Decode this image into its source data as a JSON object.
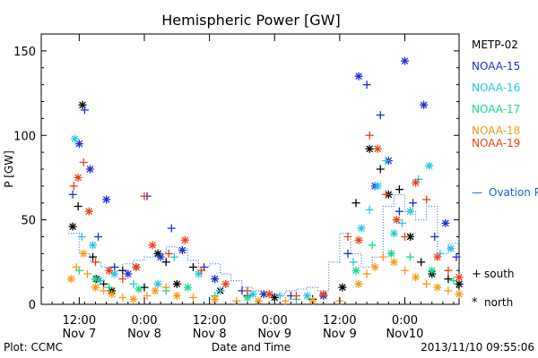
{
  "chart_data": {
    "type": "scatter",
    "title": "Hemispheric Power [GW]",
    "xlabel": "Date and Time",
    "ylabel": "P [GW]",
    "ylim": [
      0,
      160
    ],
    "xlim_hours": [
      0,
      77
    ],
    "xlim": [
      "2013-11-07 05:00",
      "2013-11-10 10:00"
    ],
    "yticks": [
      0,
      50,
      100,
      150
    ],
    "xticks": [
      {
        "t": "2013-11-07 12:00",
        "label1": "12:00",
        "label2": "Nov 7"
      },
      {
        "t": "2013-11-08 00:00",
        "label1": "0:00",
        "label2": "Nov 8"
      },
      {
        "t": "2013-11-08 12:00",
        "label1": "12:00",
        "label2": "Nov 8"
      },
      {
        "t": "2013-11-09 00:00",
        "label1": "0:00",
        "label2": "Nov 9"
      },
      {
        "t": "2013-11-09 12:00",
        "label1": "12:00",
        "label2": "Nov 9"
      },
      {
        "t": "2013-11-10 00:00",
        "label1": "0:00",
        "label2": "Nov10"
      }
    ],
    "footer_left": "Plot: CCMC",
    "footer_right": "2013/11/10 09:55:06",
    "legend_position": "right",
    "symbol_legend": [
      {
        "marker": "+",
        "label": "south"
      },
      {
        "marker": "*",
        "label": "north"
      }
    ],
    "series": [
      {
        "name": "METP-02",
        "color": "#000000",
        "marker": "mixed",
        "points": [
          [
            5.8,
            46
          ],
          [
            6.8,
            58
          ],
          [
            7.6,
            118
          ],
          [
            9.5,
            28
          ],
          [
            10.2,
            15
          ],
          [
            11.5,
            12
          ],
          [
            13.0,
            8
          ],
          [
            15.0,
            20
          ],
          [
            17.5,
            22
          ],
          [
            19.0,
            10
          ],
          [
            21.5,
            30
          ],
          [
            23.0,
            25
          ],
          [
            25.0,
            12
          ],
          [
            28.0,
            22
          ],
          [
            33.0,
            8
          ],
          [
            38.0,
            5
          ],
          [
            43.0,
            4
          ],
          [
            50.0,
            3
          ],
          [
            55.5,
            10
          ],
          [
            58.0,
            60
          ],
          [
            60.5,
            92
          ],
          [
            62.5,
            80
          ],
          [
            64.0,
            65
          ],
          [
            66.0,
            68
          ],
          [
            68.0,
            40
          ],
          [
            70.0,
            25
          ],
          [
            72.0,
            18
          ],
          [
            75.0,
            15
          ],
          [
            77.0,
            12
          ],
          [
            79.0,
            10
          ],
          [
            81.0,
            22
          ],
          [
            83.0,
            28
          ],
          [
            85.0,
            14
          ],
          [
            88.0,
            8
          ],
          [
            90.0,
            10
          ]
        ]
      },
      {
        "name": "NOAA-15",
        "color": "#1a2fd0",
        "marker": "mixed",
        "points": [
          [
            5.8,
            65
          ],
          [
            7.0,
            95
          ],
          [
            8.0,
            115
          ],
          [
            9.0,
            80
          ],
          [
            10.5,
            40
          ],
          [
            12.0,
            62
          ],
          [
            13.5,
            22
          ],
          [
            16.0,
            18
          ],
          [
            19.5,
            64
          ],
          [
            22.0,
            28
          ],
          [
            24.0,
            45
          ],
          [
            26.0,
            32
          ],
          [
            30.0,
            22
          ],
          [
            32.0,
            15
          ],
          [
            37.0,
            8
          ],
          [
            41.0,
            6
          ],
          [
            46.0,
            5
          ],
          [
            52.0,
            5
          ],
          [
            56.5,
            30
          ],
          [
            58.5,
            135
          ],
          [
            60.0,
            130
          ],
          [
            61.5,
            70
          ],
          [
            62.5,
            112
          ],
          [
            64.0,
            85
          ],
          [
            66.0,
            55
          ],
          [
            67.0,
            144
          ],
          [
            68.5,
            60
          ],
          [
            70.5,
            118
          ],
          [
            72.5,
            40
          ],
          [
            74.5,
            48
          ],
          [
            76.5,
            28
          ],
          [
            78.5,
            22
          ],
          [
            80.0,
            12
          ],
          [
            82.0,
            8
          ],
          [
            83.5,
            30
          ],
          [
            85.5,
            24
          ],
          [
            88.0,
            15
          ],
          [
            90.0,
            8
          ]
        ]
      },
      {
        "name": "NOAA-16",
        "color": "#22c8e0",
        "marker": "mixed",
        "points": [
          [
            6.2,
            98
          ],
          [
            7.5,
            40
          ],
          [
            9.5,
            35
          ],
          [
            11.0,
            14
          ],
          [
            13.5,
            18
          ],
          [
            17.0,
            12
          ],
          [
            21.5,
            12
          ],
          [
            24.5,
            28
          ],
          [
            29.0,
            18
          ],
          [
            33.0,
            8
          ],
          [
            39.0,
            6
          ],
          [
            44.0,
            5
          ],
          [
            49.0,
            5
          ],
          [
            57.5,
            25
          ],
          [
            59.0,
            45
          ],
          [
            60.5,
            56
          ],
          [
            62.0,
            70
          ],
          [
            63.5,
            85
          ],
          [
            65.0,
            42
          ],
          [
            66.5,
            48
          ],
          [
            68.0,
            55
          ],
          [
            69.5,
            74
          ],
          [
            71.5,
            82
          ],
          [
            73.5,
            30
          ],
          [
            75.5,
            33
          ],
          [
            77.5,
            20
          ],
          [
            79.5,
            18
          ],
          [
            82.5,
            10
          ],
          [
            85.0,
            6
          ],
          [
            88.5,
            8
          ]
        ]
      },
      {
        "name": "NOAA-17",
        "color": "#19d98c",
        "marker": "mixed",
        "points": [
          [
            7.0,
            20
          ],
          [
            10.0,
            15
          ],
          [
            12.5,
            10
          ],
          [
            18.0,
            9
          ],
          [
            23.0,
            8
          ],
          [
            27.0,
            10
          ],
          [
            32.0,
            5
          ],
          [
            38.0,
            4
          ],
          [
            47.0,
            3
          ],
          [
            58.0,
            20
          ],
          [
            61.0,
            35
          ],
          [
            64.5,
            30
          ],
          [
            68.0,
            28
          ],
          [
            72.0,
            20
          ],
          [
            76.0,
            14
          ],
          [
            80.0,
            10
          ],
          [
            84.0,
            8
          ],
          [
            89.0,
            6
          ]
        ]
      },
      {
        "name": "NOAA-18",
        "color": "#f59a1a",
        "marker": "mixed",
        "points": [
          [
            5.5,
            15
          ],
          [
            6.5,
            22
          ],
          [
            7.8,
            30
          ],
          [
            8.5,
            18
          ],
          [
            10.0,
            10
          ],
          [
            11.5,
            8
          ],
          [
            13.0,
            6
          ],
          [
            15.0,
            4
          ],
          [
            17.0,
            3
          ],
          [
            19.5,
            5
          ],
          [
            21.0,
            8
          ],
          [
            23.0,
            10
          ],
          [
            25.0,
            5
          ],
          [
            28.0,
            4
          ],
          [
            32.0,
            3
          ],
          [
            36.0,
            2
          ],
          [
            40.0,
            2
          ],
          [
            45.0,
            2
          ],
          [
            50.0,
            2
          ],
          [
            55.0,
            2
          ],
          [
            58.5,
            12
          ],
          [
            60.0,
            18
          ],
          [
            61.5,
            22
          ],
          [
            63.0,
            28
          ],
          [
            65.0,
            25
          ],
          [
            67.0,
            20
          ],
          [
            69.0,
            16
          ],
          [
            71.0,
            12
          ],
          [
            73.0,
            10
          ],
          [
            75.0,
            8
          ],
          [
            77.0,
            6
          ],
          [
            79.0,
            5
          ],
          [
            81.0,
            9
          ],
          [
            83.0,
            12
          ],
          [
            85.0,
            8
          ],
          [
            87.0,
            5
          ],
          [
            90.0,
            4
          ]
        ]
      },
      {
        "name": "NOAA-19",
        "color": "#e8401a",
        "marker": "mixed",
        "points": [
          [
            6.0,
            70
          ],
          [
            6.8,
            75
          ],
          [
            7.8,
            84
          ],
          [
            8.8,
            55
          ],
          [
            10.0,
            25
          ],
          [
            12.5,
            20
          ],
          [
            15.0,
            15
          ],
          [
            17.5,
            22
          ],
          [
            19.0,
            64
          ],
          [
            20.5,
            35
          ],
          [
            23.5,
            30
          ],
          [
            26.5,
            38
          ],
          [
            29.5,
            20
          ],
          [
            34.0,
            12
          ],
          [
            38.0,
            8
          ],
          [
            42.0,
            6
          ],
          [
            47.0,
            5
          ],
          [
            52.0,
            6
          ],
          [
            56.5,
            40
          ],
          [
            58.5,
            38
          ],
          [
            60.5,
            100
          ],
          [
            62.0,
            92
          ],
          [
            63.5,
            65
          ],
          [
            65.5,
            50
          ],
          [
            67.0,
            40
          ],
          [
            69.0,
            72
          ],
          [
            71.0,
            62
          ],
          [
            73.0,
            28
          ],
          [
            75.0,
            20
          ],
          [
            77.0,
            16
          ],
          [
            79.0,
            22
          ],
          [
            81.0,
            10
          ],
          [
            83.0,
            18
          ],
          [
            85.5,
            28
          ],
          [
            88.0,
            12
          ],
          [
            90.0,
            9
          ]
        ]
      }
    ],
    "ovation": {
      "name": "Ovation Prime HPI",
      "color": "#1a5fd0",
      "style": "dotted step",
      "points": [
        [
          5,
          42
        ],
        [
          7,
          30
        ],
        [
          9,
          25
        ],
        [
          11,
          22
        ],
        [
          13,
          20
        ],
        [
          15,
          24
        ],
        [
          17,
          26
        ],
        [
          19,
          28
        ],
        [
          21,
          30
        ],
        [
          23,
          34
        ],
        [
          25,
          33
        ],
        [
          27,
          26
        ],
        [
          29,
          22
        ],
        [
          31,
          24
        ],
        [
          33,
          18
        ],
        [
          35,
          14
        ],
        [
          37,
          10
        ],
        [
          39,
          8
        ],
        [
          41,
          7
        ],
        [
          43,
          6
        ],
        [
          45,
          8
        ],
        [
          47,
          9
        ],
        [
          49,
          10
        ],
        [
          51,
          8
        ],
        [
          53,
          25
        ],
        [
          55,
          42
        ],
        [
          57,
          30
        ],
        [
          59,
          22
        ],
        [
          61,
          28
        ],
        [
          63,
          58
        ],
        [
          65,
          65
        ],
        [
          67,
          55
        ],
        [
          69,
          50
        ],
        [
          71,
          58
        ],
        [
          73,
          30
        ],
        [
          75,
          36
        ],
        [
          77,
          40
        ],
        [
          79,
          24
        ],
        [
          81,
          20
        ],
        [
          83,
          35
        ],
        [
          85,
          28
        ],
        [
          87,
          20
        ],
        [
          89,
          30
        ],
        [
          91,
          35
        ],
        [
          93,
          42
        ]
      ]
    }
  },
  "legend_names": [
    "METP-02",
    "NOAA-15",
    "NOAA-16",
    "NOAA-17",
    "NOAA-18",
    "NOAA-19"
  ]
}
